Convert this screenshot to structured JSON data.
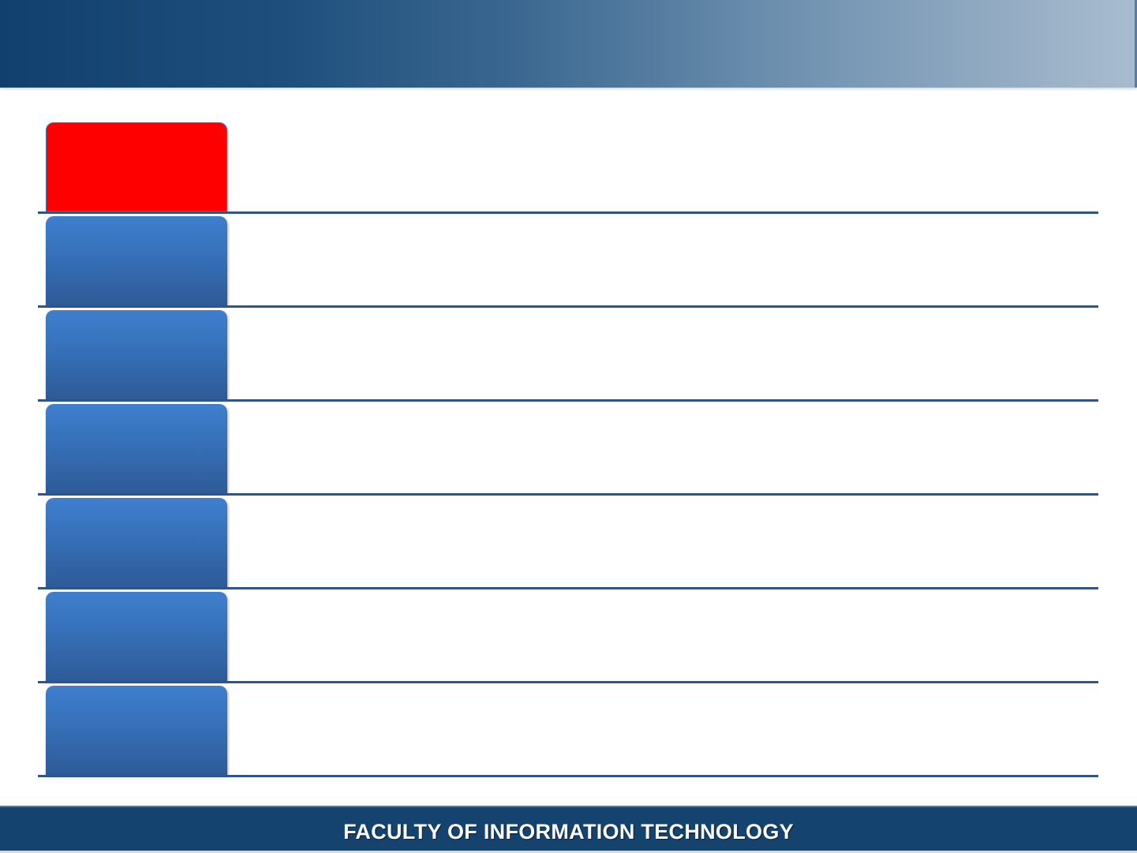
{
  "header": {
    "title": ""
  },
  "rows": [
    {
      "label": "",
      "detail": "",
      "active": true
    },
    {
      "label": "",
      "detail": "",
      "active": false
    },
    {
      "label": "",
      "detail": "",
      "active": false
    },
    {
      "label": "",
      "detail": "",
      "active": false
    },
    {
      "label": "",
      "detail": "",
      "active": false
    },
    {
      "label": "",
      "detail": "",
      "active": false
    },
    {
      "label": "",
      "detail": "",
      "active": false
    }
  ],
  "footer": {
    "text": "FACULTY OF INFORMATION TECHNOLOGY"
  },
  "colors": {
    "header_dark": "#12406e",
    "header_light": "#a9bccf",
    "tile_blue": "#3670b8",
    "tile_active": "#ff0000",
    "divider": "#2f5486",
    "footer_bg": "#15436f"
  }
}
